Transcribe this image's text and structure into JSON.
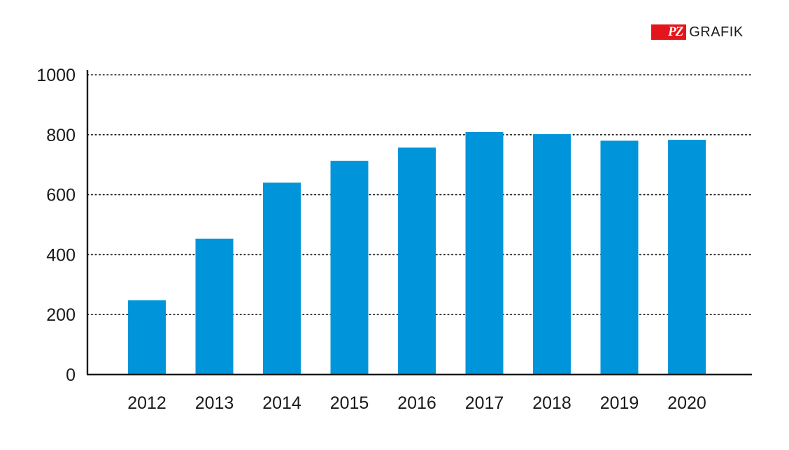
{
  "logo": {
    "badge": "PZ",
    "text": "GRAFIK"
  },
  "chart_data": {
    "type": "bar",
    "categories": [
      "2012",
      "2013",
      "2014",
      "2015",
      "2016",
      "2017",
      "2018",
      "2019",
      "2020"
    ],
    "values": [
      248,
      453,
      640,
      713,
      757,
      809,
      802,
      780,
      783
    ],
    "title": "",
    "xlabel": "",
    "ylabel": "",
    "ylim": [
      0,
      1000
    ],
    "yticks": [
      0,
      200,
      400,
      600,
      800,
      1000
    ],
    "grid": "dotted horizontal",
    "bar_color": "#0095da",
    "axis_color": "#1a1a1a"
  }
}
